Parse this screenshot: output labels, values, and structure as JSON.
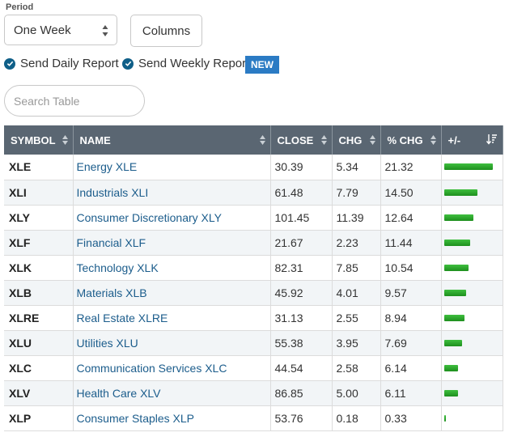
{
  "period": {
    "label": "Period",
    "selected": "One Week"
  },
  "columns_button": "Columns",
  "reports": {
    "daily": "Send Daily Report",
    "weekly": "Send Weekly Report",
    "badge": "NEW"
  },
  "search": {
    "placeholder": "Search Table"
  },
  "table": {
    "headers": [
      "SYMBOL",
      "NAME",
      "CLOSE",
      "CHG",
      "% CHG",
      "+/-"
    ],
    "rows": [
      {
        "symbol": "XLE",
        "name": "Energy XLE",
        "close": "30.39",
        "chg": "5.34",
        "pct": "21.32"
      },
      {
        "symbol": "XLI",
        "name": "Industrials XLI",
        "close": "61.48",
        "chg": "7.79",
        "pct": "14.50"
      },
      {
        "symbol": "XLY",
        "name": "Consumer Discretionary XLY",
        "close": "101.45",
        "chg": "11.39",
        "pct": "12.64"
      },
      {
        "symbol": "XLF",
        "name": "Financial XLF",
        "close": "21.67",
        "chg": "2.23",
        "pct": "11.44"
      },
      {
        "symbol": "XLK",
        "name": "Technology XLK",
        "close": "82.31",
        "chg": "7.85",
        "pct": "10.54"
      },
      {
        "symbol": "XLB",
        "name": "Materials XLB",
        "close": "45.92",
        "chg": "4.01",
        "pct": "9.57"
      },
      {
        "symbol": "XLRE",
        "name": "Real Estate XLRE",
        "close": "31.13",
        "chg": "2.55",
        "pct": "8.94"
      },
      {
        "symbol": "XLU",
        "name": "Utilities XLU",
        "close": "55.38",
        "chg": "3.95",
        "pct": "7.69"
      },
      {
        "symbol": "XLC",
        "name": "Communication Services XLC",
        "close": "44.54",
        "chg": "2.58",
        "pct": "6.14"
      },
      {
        "symbol": "XLV",
        "name": "Health Care XLV",
        "close": "86.85",
        "chg": "5.00",
        "pct": "6.11"
      },
      {
        "symbol": "XLP",
        "name": "Consumer Staples XLP",
        "close": "53.76",
        "chg": "0.18",
        "pct": "0.33"
      }
    ]
  },
  "colors": {
    "header_bg": "#5a6672",
    "link": "#1c5d8c",
    "bar": "#2fae2f",
    "check": "#0f5f88",
    "badge": "#2b7bc4"
  },
  "icons": [
    "check-circle-icon",
    "select-arrows-icon",
    "sort-icon",
    "sort-desc-icon"
  ]
}
